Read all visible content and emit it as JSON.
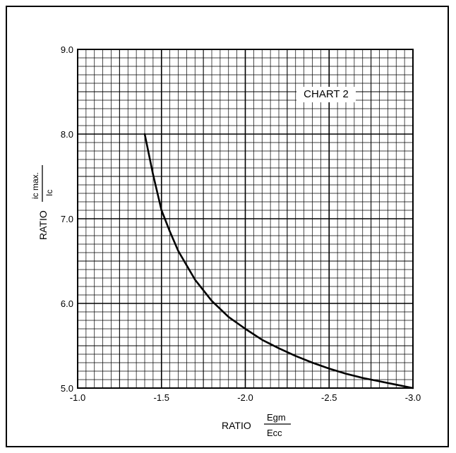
{
  "chart_data": {
    "type": "line",
    "title": "CHART 2",
    "xlabel": {
      "prefix": "RATIO",
      "numerator": "Egm",
      "denominator": "Ecc"
    },
    "ylabel": {
      "prefix": "RATIO",
      "numerator": "ic max.",
      "denominator": "Ic"
    },
    "xlim": [
      -1.0,
      -3.0
    ],
    "ylim": [
      5.0,
      9.0
    ],
    "x_ticks": [
      "-1.0",
      "-1.5",
      "-2.0",
      "-2.5",
      "-3.0"
    ],
    "y_ticks": [
      "5.0",
      "6.0",
      "7.0",
      "8.0",
      "9.0"
    ],
    "grid": true,
    "series": [
      {
        "x": [
          -1.4,
          -1.45,
          -1.5,
          -1.55,
          -1.6,
          -1.7,
          -1.8,
          -1.9,
          -2.0,
          -2.1,
          -2.2,
          -2.3,
          -2.4,
          -2.5,
          -2.6,
          -2.7,
          -2.8,
          -2.9,
          -3.0
        ],
        "y": [
          8.0,
          7.52,
          7.1,
          6.85,
          6.62,
          6.28,
          6.03,
          5.84,
          5.7,
          5.57,
          5.47,
          5.38,
          5.3,
          5.23,
          5.17,
          5.12,
          5.08,
          5.04,
          5.0
        ]
      }
    ]
  }
}
